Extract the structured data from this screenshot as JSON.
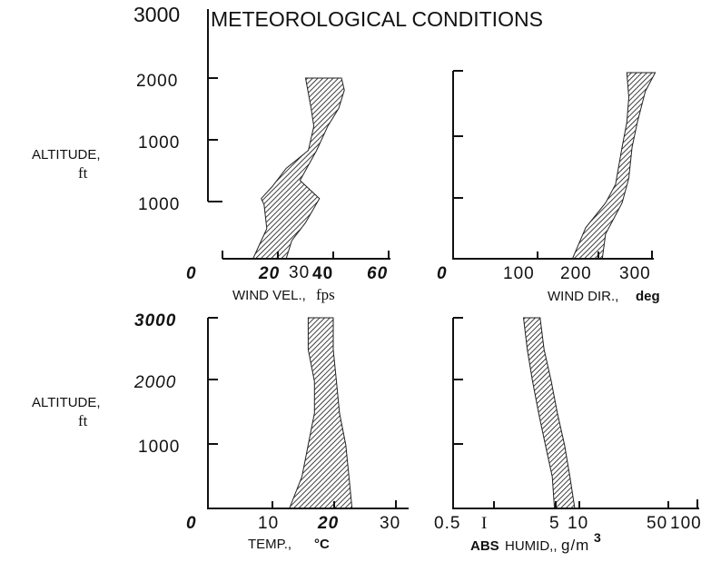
{
  "title": "METEOROLOGICAL CONDITIONS",
  "title_overlap_fragment": "3000",
  "altitude_label_line1": "ALTITUDE,",
  "altitude_label_line2": "ft",
  "altitude_label2_line1": "ALTITUDE,",
  "altitude_label2_line2": "ft",
  "chart_data": [
    {
      "type": "area",
      "xlabel_a": "WIND VEL.,",
      "xlabel_b": "fps",
      "xlim": [
        0,
        60
      ],
      "x_ticks": [
        "0",
        "20",
        "40",
        "60"
      ],
      "extra_tick_label": "30",
      "y_ticks": [
        "2000",
        "1000",
        "1000"
      ],
      "ylim": [
        0,
        3000
      ],
      "band_low": [
        [
          11,
          0
        ],
        [
          16,
          500
        ],
        [
          15,
          900
        ],
        [
          14,
          1000
        ],
        [
          18,
          1200
        ],
        [
          23,
          1500
        ],
        [
          31,
          1800
        ],
        [
          33,
          2200
        ],
        [
          32,
          2500
        ],
        [
          30,
          3000
        ]
      ],
      "band_high": [
        [
          23,
          0
        ],
        [
          25,
          300
        ],
        [
          30,
          600
        ],
        [
          35,
          1000
        ],
        [
          28,
          1300
        ],
        [
          34,
          1800
        ],
        [
          38,
          2200
        ],
        [
          42,
          2500
        ],
        [
          44,
          2800
        ],
        [
          43,
          3000
        ]
      ]
    },
    {
      "type": "area",
      "xlabel_a": "WIND DIR.,",
      "xlabel_b": "deg",
      "xlim": [
        0,
        300
      ],
      "x_ticks": [
        "0",
        "100",
        "200",
        "300"
      ],
      "ylim": [
        0,
        3000
      ],
      "band_low": [
        [
          180,
          0
        ],
        [
          200,
          500
        ],
        [
          230,
          900
        ],
        [
          245,
          1200
        ],
        [
          255,
          1800
        ],
        [
          262,
          2200
        ],
        [
          265,
          2600
        ],
        [
          262,
          3000
        ]
      ],
      "band_high": [
        [
          225,
          0
        ],
        [
          230,
          400
        ],
        [
          255,
          900
        ],
        [
          265,
          1300
        ],
        [
          270,
          1800
        ],
        [
          278,
          2200
        ],
        [
          290,
          2700
        ],
        [
          305,
          3000
        ]
      ]
    },
    {
      "type": "area",
      "xlabel_a": "TEMP.,",
      "xlabel_b": "°C",
      "xlim": [
        0,
        30
      ],
      "x_ticks": [
        "0",
        "10",
        "20",
        "30"
      ],
      "y_ticks": [
        "3000",
        "2000",
        "1000"
      ],
      "ylim": [
        0,
        3000
      ],
      "band_low": [
        [
          13,
          0
        ],
        [
          15,
          500
        ],
        [
          16,
          1000
        ],
        [
          17,
          1500
        ],
        [
          17,
          2000
        ],
        [
          16,
          2500
        ],
        [
          16,
          3000
        ]
      ],
      "band_high": [
        [
          23,
          0
        ],
        [
          22.5,
          500
        ],
        [
          22,
          1000
        ],
        [
          21,
          1500
        ],
        [
          20.5,
          2000
        ],
        [
          20,
          2500
        ],
        [
          20,
          3000
        ]
      ]
    },
    {
      "type": "area",
      "xlabel_a": "ABS",
      "xlabel_b": "HUMID,,",
      "xlabel_c": "g/m",
      "xlabel_sup": "3",
      "x_scale": "log",
      "xlim": [
        0.5,
        100
      ],
      "x_ticks": [
        "0.5",
        "I",
        "5",
        "10",
        "50",
        "100"
      ],
      "x_tick_values": [
        0.5,
        1,
        5,
        10,
        50,
        100
      ],
      "ylim": [
        0,
        3000
      ],
      "band_low": [
        [
          2.3,
          3000
        ],
        [
          2.5,
          2500
        ],
        [
          2.8,
          2000
        ],
        [
          3.2,
          1500
        ],
        [
          3.7,
          1000
        ],
        [
          4.3,
          500
        ],
        [
          4.5,
          0
        ]
      ],
      "band_high": [
        [
          3.3,
          3000
        ],
        [
          3.6,
          2500
        ],
        [
          4.2,
          2000
        ],
        [
          4.8,
          1500
        ],
        [
          5.6,
          1000
        ],
        [
          6.3,
          500
        ],
        [
          7.0,
          0
        ]
      ]
    }
  ]
}
